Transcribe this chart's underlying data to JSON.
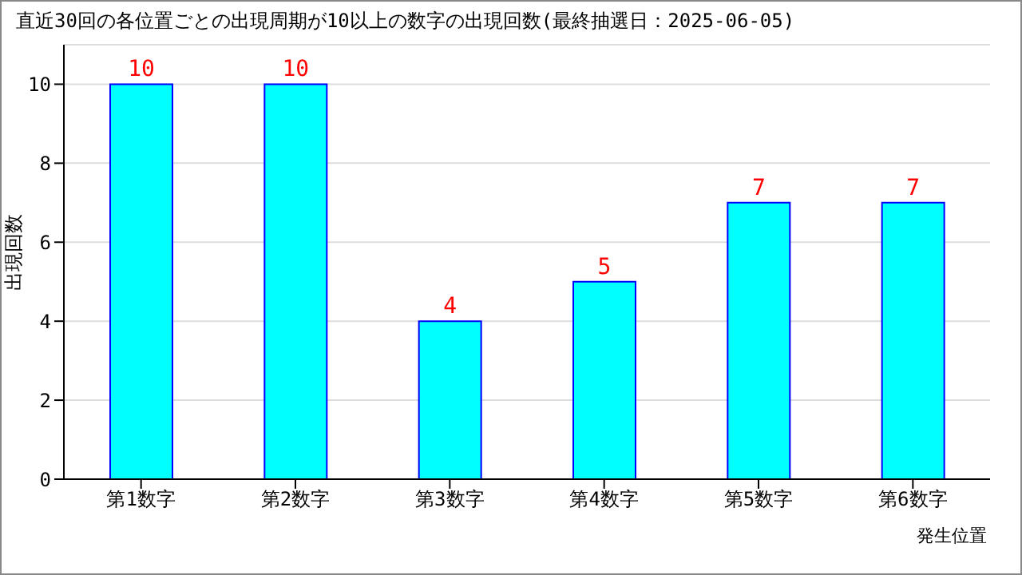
{
  "chart_data": {
    "type": "bar",
    "title": "直近30回の各位置ごとの出現周期が10以上の数字の出現回数(最終抽選日：2025-06-05)",
    "categories": [
      "第1数字",
      "第2数字",
      "第3数字",
      "第4数字",
      "第5数字",
      "第6数字"
    ],
    "values": [
      10,
      10,
      4,
      5,
      7,
      7
    ],
    "color": "#00ffff",
    "xlabel": "発生位置",
    "ylabel": "出現回数",
    "ylim": [
      0,
      11
    ],
    "yticks": [
      0,
      2,
      4,
      6,
      8,
      10
    ],
    "grid": "y",
    "data_labels": true
  }
}
